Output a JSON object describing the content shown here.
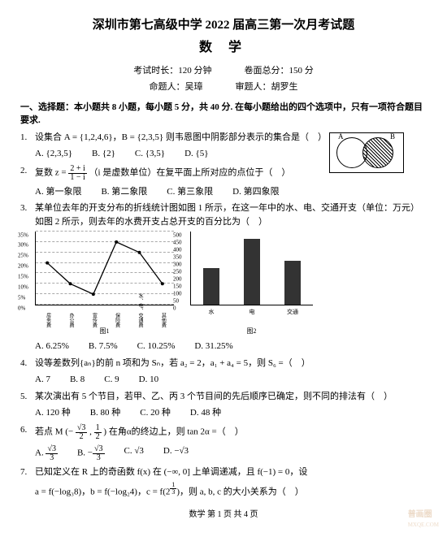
{
  "header": {
    "title": "深圳市第七高级中学 2022 届高三第一次月考试题",
    "subject": "数 学",
    "duration_label": "考试时长：",
    "duration": "120 分钟",
    "fullscore_label": "卷面总分：",
    "fullscore": "150 分",
    "author_label": "命题人：",
    "author": "吴璋",
    "reviewer_label": "审题人：",
    "reviewer": "胡罗生"
  },
  "section1": "一、选择题：本小题共 8 小题，每小题 5 分，共 40 分. 在每小题给出的四个选项中，只有一项符合题目要求.",
  "q1": {
    "num": "1.",
    "text": "设集合 A = {1,2,4,6}，B = {2,3,5} 则韦恩图中阴影部分表示的集合是（　）",
    "opts": {
      "A": "A. {2,3,5}",
      "B": "B. {2}",
      "C": "C. {3,5}",
      "D": "D. {5}"
    },
    "venn": {
      "labA": "A",
      "labB": "B"
    }
  },
  "q2": {
    "num": "2.",
    "text_a": "复数 z = ",
    "frac_n": "2 + i",
    "frac_d": "1 − i",
    "text_b": "（i 是虚数单位）在复平面上所对应的点位于（　）",
    "opts": {
      "A": "A. 第一象限",
      "B": "B. 第二象限",
      "C": "C. 第三象限",
      "D": "D. 第四象限"
    }
  },
  "q3": {
    "num": "3.",
    "text": "某单位去年的开支分布的折线统计图如图 1 所示，在这一年中的水、电、交通开支（单位：万元）如图 2 所示，则去年的水费开支占总开支的百分比为（　）",
    "opts": {
      "A": "A. 6.25%",
      "B": "B. 7.5%",
      "C": "C. 10.25%",
      "D": "D. 31.25%"
    },
    "line": {
      "categories": [
        "房务费",
        "办公费",
        "宣传费",
        "保险费",
        "水、电、交通费",
        "其他费"
      ],
      "values_pct": [
        20,
        10,
        5,
        30,
        25,
        10
      ],
      "yticks": [
        0,
        5,
        10,
        15,
        20,
        25,
        30,
        35
      ],
      "ylim": [
        0,
        35
      ],
      "line_color": "#000",
      "point_color": "#000",
      "grid_color": "#000",
      "caption": "图1"
    },
    "bar": {
      "categories": [
        "水",
        "电",
        "交通"
      ],
      "values": [
        250,
        450,
        300
      ],
      "yticks": [
        0,
        50,
        100,
        150,
        200,
        250,
        300,
        350,
        400,
        450,
        500
      ],
      "ylim": [
        0,
        500
      ],
      "bar_color": "#333333",
      "bar_width": 0.4,
      "caption": "图2"
    }
  },
  "q4": {
    "num": "4.",
    "text": "设等差数列{aₙ}的前 n 项和为 Sₙ，若 a₂ = 2，a₁ + a₄ = 5，则 S₆ =（　）",
    "opts": {
      "A": "A. 7",
      "B": "B. 8",
      "C": "C. 9",
      "D": "D. 10"
    }
  },
  "q5": {
    "num": "5.",
    "text": "某次演出有 5 个节目，若甲、乙、丙 3 个节目间的先后顺序已确定，则不同的排法有（　）",
    "opts": {
      "A": "A. 120 种",
      "B": "B. 80 种",
      "C": "C. 20 种",
      "D": "D. 48 种"
    }
  },
  "q6": {
    "num": "6.",
    "text_a": "若点 M (−",
    "mx_n": "√3",
    "mx_d": "2",
    "text_b": ", ",
    "my_n": "1",
    "my_d": "2",
    "text_c": ") 在角α的终边上，则 tan 2α =（　）",
    "opts": {
      "A_n": "√3",
      "A_d": "3",
      "B_n": "√3",
      "B_d": "3",
      "C": "C. √3",
      "D": "D. −√3"
    },
    "optA_pre": "A. ",
    "optB_pre": "B. −"
  },
  "q7": {
    "num": "7.",
    "text": "已知定义在 R 上的奇函数 f(x) 在 (−∞, 0] 上单调递减，且 f(−1) = 0，设",
    "line2_a": "a = f(−log₃8)，b = f(−log₂4)，c = f(2",
    "exp_n": "1",
    "exp_d": "3",
    "line2_b": ")，则 a, b, c 的大小关系为（　）"
  },
  "footer": "数学 第 1 页  共 4 页",
  "watermark": {
    "l1": "普画圈",
    "l2": "MXQE.COM"
  }
}
